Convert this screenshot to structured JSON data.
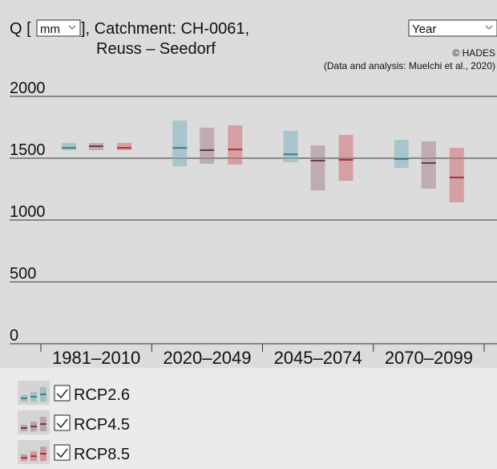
{
  "header": {
    "q_label": "Q [",
    "unit": "mm",
    "catchment": "], Catchment: CH-0061,",
    "name": "Reuss – Seedorf",
    "period": "Year",
    "credit": "© HADES",
    "source": "(Data and analysis: Muelchi et al., 2020)"
  },
  "chart_data": {
    "type": "range",
    "categories": [
      "1981–2010",
      "2020–2049",
      "2045–2074",
      "2070–2099"
    ],
    "ylim": [
      0,
      2130
    ],
    "yticks": [
      0,
      500,
      1000,
      1500,
      2000
    ],
    "grid": true,
    "series": [
      {
        "name": "RCP2.6",
        "color": "#7fb0bb",
        "median_color": "#3b7f91",
        "min": [
          1565,
          1435,
          1468,
          1422
        ],
        "max": [
          1623,
          1805,
          1721,
          1649
        ],
        "median": [
          1584,
          1584,
          1532,
          1494
        ]
      },
      {
        "name": "RCP4.5",
        "color": "#a88590",
        "median_color": "#6b3a4a",
        "min": [
          1565,
          1455,
          1240,
          1253
        ],
        "max": [
          1623,
          1747,
          1604,
          1636
        ],
        "median": [
          1597,
          1565,
          1481,
          1461
        ]
      },
      {
        "name": "RCP8.5",
        "color": "#cf7075",
        "median_color": "#b0303a",
        "min": [
          1565,
          1448,
          1318,
          1143
        ],
        "max": [
          1623,
          1766,
          1688,
          1584
        ],
        "median": [
          1584,
          1571,
          1487,
          1344
        ]
      }
    ]
  }
}
